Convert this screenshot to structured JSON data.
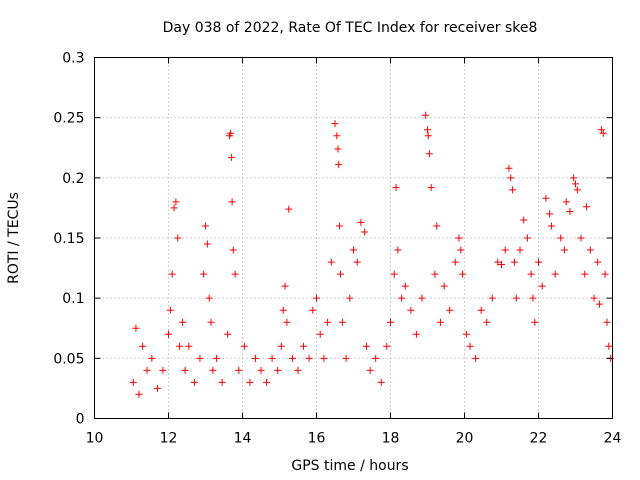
{
  "chart_data": {
    "type": "scatter",
    "title": "Day 038 of 2022, Rate Of TEC Index for receiver ske8",
    "xlabel": "GPS time / hours",
    "ylabel": "ROTI / TECUs",
    "xlim": [
      10,
      24
    ],
    "ylim": [
      0,
      0.3
    ],
    "xticks": [
      10,
      12,
      14,
      16,
      18,
      20,
      22,
      24
    ],
    "yticks": [
      0,
      0.05,
      0.1,
      0.15,
      0.2,
      0.25,
      0.3
    ],
    "xtick_labels": [
      "10",
      "12",
      "14",
      "16",
      "18",
      "20",
      "22",
      "24"
    ],
    "ytick_labels": [
      "0",
      "0.05",
      "0.1",
      "0.15",
      "0.2",
      "0.25",
      "0.3"
    ],
    "grid": true,
    "marker": "+",
    "color": "#ff0000",
    "series": [
      {
        "x": [
          11.05,
          11.12,
          11.2,
          11.3,
          11.42,
          11.55,
          11.7,
          11.85,
          12.0,
          12.05,
          12.1,
          12.15,
          12.2,
          12.25,
          12.3,
          12.38,
          12.45,
          12.55,
          12.7,
          12.85,
          12.95,
          13.0,
          13.05,
          13.1,
          13.15,
          13.2,
          13.3,
          13.45,
          13.6,
          13.65,
          13.68,
          13.7,
          13.72,
          13.75,
          13.8,
          13.9,
          14.05,
          14.2,
          14.35,
          14.5,
          14.65,
          14.8,
          14.95,
          15.05,
          15.1,
          15.15,
          15.2,
          15.25,
          15.35,
          15.5,
          15.65,
          15.8,
          15.9,
          16.0,
          16.1,
          16.2,
          16.3,
          16.4,
          16.5,
          16.55,
          16.58,
          16.6,
          16.62,
          16.65,
          16.7,
          16.8,
          16.9,
          17.0,
          17.1,
          17.2,
          17.3,
          17.35,
          17.45,
          17.6,
          17.75,
          17.9,
          18.0,
          18.1,
          18.15,
          18.2,
          18.3,
          18.4,
          18.55,
          18.7,
          18.85,
          18.95,
          19.0,
          19.02,
          19.05,
          19.1,
          19.2,
          19.25,
          19.35,
          19.45,
          19.6,
          19.75,
          19.85,
          19.9,
          19.95,
          20.05,
          20.15,
          20.3,
          20.45,
          20.6,
          20.75,
          20.9,
          21.0,
          21.1,
          21.2,
          21.25,
          21.3,
          21.35,
          21.4,
          21.5,
          21.6,
          21.7,
          21.8,
          21.85,
          21.9,
          22.0,
          22.1,
          22.2,
          22.3,
          22.35,
          22.45,
          22.6,
          22.7,
          22.75,
          22.85,
          22.95,
          23.0,
          23.05,
          23.15,
          23.25,
          23.3,
          23.4,
          23.5,
          23.6,
          23.65,
          23.7,
          23.75,
          23.8,
          23.85,
          23.9,
          23.95
        ],
        "y": [
          0.03,
          0.075,
          0.02,
          0.06,
          0.04,
          0.05,
          0.025,
          0.04,
          0.07,
          0.09,
          0.12,
          0.175,
          0.18,
          0.15,
          0.06,
          0.08,
          0.04,
          0.06,
          0.03,
          0.05,
          0.12,
          0.16,
          0.145,
          0.1,
          0.08,
          0.04,
          0.05,
          0.03,
          0.07,
          0.235,
          0.237,
          0.217,
          0.18,
          0.14,
          0.12,
          0.04,
          0.06,
          0.03,
          0.05,
          0.04,
          0.03,
          0.05,
          0.04,
          0.06,
          0.09,
          0.11,
          0.08,
          0.174,
          0.05,
          0.04,
          0.06,
          0.05,
          0.09,
          0.1,
          0.07,
          0.05,
          0.08,
          0.13,
          0.245,
          0.235,
          0.224,
          0.211,
          0.16,
          0.12,
          0.08,
          0.05,
          0.1,
          0.14,
          0.13,
          0.163,
          0.155,
          0.06,
          0.04,
          0.05,
          0.03,
          0.06,
          0.08,
          0.12,
          0.192,
          0.14,
          0.1,
          0.11,
          0.09,
          0.07,
          0.1,
          0.252,
          0.24,
          0.235,
          0.22,
          0.192,
          0.12,
          0.16,
          0.08,
          0.11,
          0.09,
          0.13,
          0.15,
          0.14,
          0.12,
          0.07,
          0.06,
          0.05,
          0.09,
          0.08,
          0.1,
          0.13,
          0.128,
          0.14,
          0.208,
          0.2,
          0.19,
          0.13,
          0.1,
          0.14,
          0.165,
          0.15,
          0.12,
          0.1,
          0.08,
          0.13,
          0.11,
          0.183,
          0.17,
          0.16,
          0.12,
          0.15,
          0.14,
          0.18,
          0.172,
          0.2,
          0.195,
          0.19,
          0.15,
          0.12,
          0.176,
          0.14,
          0.1,
          0.13,
          0.095,
          0.24,
          0.237,
          0.12,
          0.08,
          0.06,
          0.05
        ]
      }
    ]
  }
}
